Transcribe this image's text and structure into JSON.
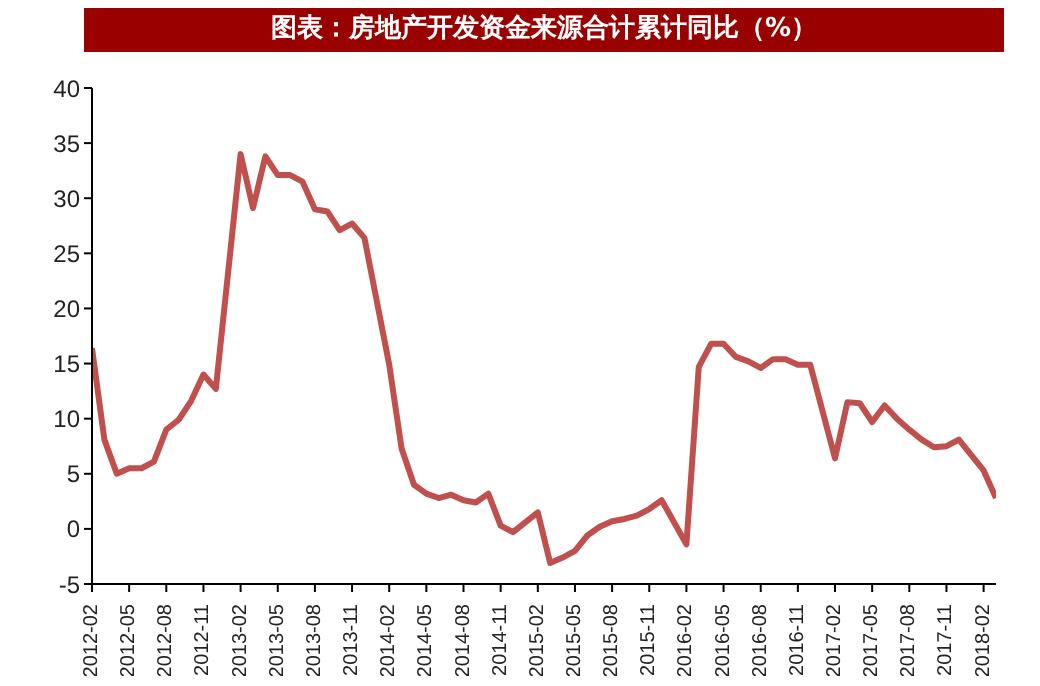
{
  "chart_data": {
    "type": "line",
    "title": "图表：房地产开发资金来源合计累计同比（%）",
    "categories": [
      "2012-02",
      null,
      null,
      "2012-05",
      null,
      null,
      "2012-08",
      null,
      null,
      "2012-11",
      null,
      null,
      "2013-02",
      null,
      null,
      "2013-05",
      null,
      null,
      "2013-08",
      null,
      null,
      "2013-11",
      null,
      null,
      "2014-02",
      null,
      null,
      "2014-05",
      null,
      null,
      "2014-08",
      null,
      null,
      "2014-11",
      null,
      null,
      "2015-02",
      null,
      null,
      "2015-05",
      null,
      null,
      "2015-08",
      null,
      null,
      "2015-11",
      null,
      null,
      "2016-02",
      null,
      null,
      "2016-05",
      null,
      null,
      "2016-08",
      null,
      null,
      "2016-11",
      null,
      null,
      "2017-02",
      null,
      null,
      "2017-05",
      null,
      null,
      "2017-08",
      null,
      null,
      "2017-11",
      null,
      null,
      "2018-02",
      null
    ],
    "series": [
      {
        "color": "#c0504d",
        "values": [
          16.4,
          8.1,
          5.0,
          5.5,
          5.5,
          6.1,
          9.0,
          9.9,
          11.6,
          14.0,
          12.7,
          null,
          34.0,
          29.1,
          33.8,
          32.1,
          32.1,
          31.5,
          29.0,
          28.8,
          27.1,
          27.7,
          26.4,
          null,
          14.9,
          7.3,
          4.0,
          3.2,
          2.8,
          3.1,
          2.6,
          2.4,
          3.2,
          0.3,
          -0.3,
          null,
          1.5,
          -3.1,
          -2.6,
          -2.0,
          -0.6,
          0.2,
          0.7,
          0.9,
          1.2,
          1.8,
          2.6,
          null,
          -1.4,
          14.7,
          16.8,
          16.8,
          15.6,
          15.2,
          14.6,
          15.4,
          15.4,
          14.9,
          14.9,
          null,
          6.4,
          11.5,
          11.4,
          9.7,
          11.2,
          10.0,
          9.0,
          8.1,
          7.4,
          7.5,
          8.1,
          null,
          5.3,
          2.8
        ]
      }
    ],
    "ylim": [
      -5,
      40
    ],
    "yticks": [
      -5,
      0,
      5,
      10,
      15,
      20,
      25,
      30,
      35,
      40
    ]
  }
}
